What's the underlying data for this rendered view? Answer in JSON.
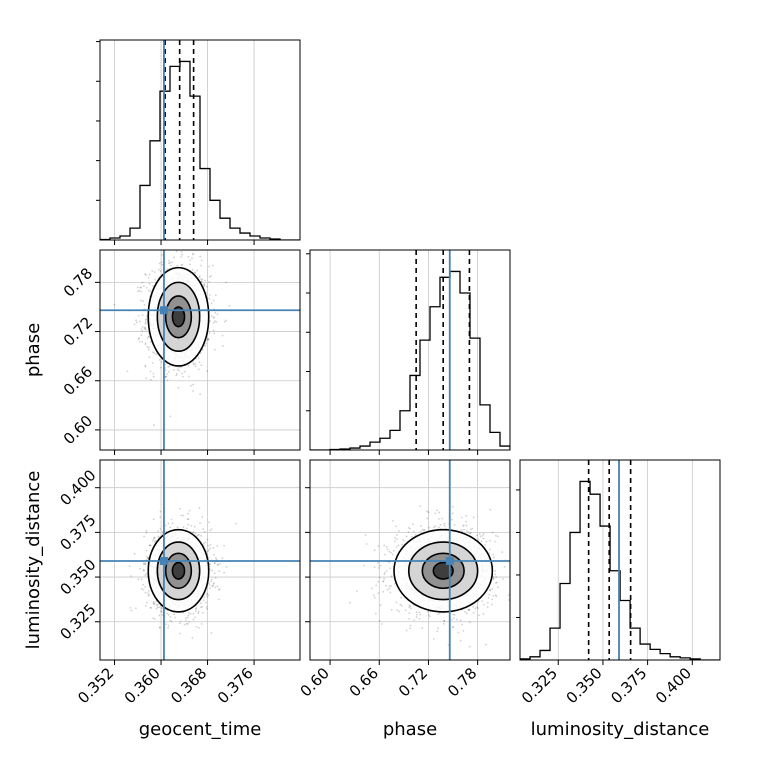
{
  "chart_data": {
    "type": "corner",
    "parameters": [
      "geocent_time",
      "phase",
      "luminosity_distance"
    ],
    "axis_labels": {
      "geocent_time": "geocent_time",
      "phase": "phase",
      "luminosity_distance": "luminosity_distance"
    },
    "ranges": {
      "geocent_time": [
        0.3495,
        0.3839
      ],
      "phase": [
        0.5755,
        0.8195
      ],
      "luminosity_distance": [
        0.3036,
        0.4155
      ]
    },
    "ticks": {
      "geocent_time": [
        "0.352",
        "0.360",
        "0.368",
        "0.376"
      ],
      "phase": [
        "0.60",
        "0.66",
        "0.72",
        "0.78"
      ],
      "luminosity_distance": [
        "0.325",
        "0.350",
        "0.375",
        "0.400"
      ]
    },
    "truth": {
      "geocent_time": 0.3605,
      "phase": 0.746,
      "luminosity_distance": 0.359
    },
    "quantiles": {
      "geocent_time": [
        0.3607,
        0.3632,
        0.3656
      ],
      "phase": [
        0.705,
        0.738,
        0.77
      ],
      "luminosity_distance": [
        0.342,
        0.3535,
        0.3655
      ]
    },
    "estimates": {
      "geocent_time": {
        "mean": 0.363,
        "sd": 0.0026
      },
      "phase": {
        "mean": 0.738,
        "sd": 0.03
      },
      "luminosity_distance": {
        "mean": 0.3535,
        "sd": 0.0115
      }
    },
    "histograms": {
      "geocent_time": {
        "edges_start": 0.3495,
        "bin_width": 0.00172,
        "counts": [
          0.5,
          2,
          4,
          12,
          55,
          100,
          150,
          175,
          180,
          145,
          72,
          40,
          22,
          12,
          7,
          4,
          2,
          1,
          0,
          0
        ]
      },
      "phase": {
        "edges_start": 0.5755,
        "bin_width": 0.0122,
        "counts": [
          0,
          0,
          0.5,
          1,
          2,
          4,
          8,
          12,
          20,
          40,
          76,
          112,
          146,
          176,
          182,
          160,
          114,
          46,
          18,
          4
        ]
      },
      "luminosity_distance": {
        "edges_start": 0.3036,
        "bin_width": 0.0056,
        "counts": [
          1,
          3,
          9,
          30,
          72,
          120,
          168,
          156,
          126,
          84,
          56,
          30,
          15,
          10,
          6,
          3,
          2,
          1,
          0,
          0
        ]
      }
    },
    "grid": true,
    "colors": {
      "truth": "#4682b4",
      "hist": "#000000",
      "quantile": "#000000",
      "density": "#000000"
    }
  }
}
